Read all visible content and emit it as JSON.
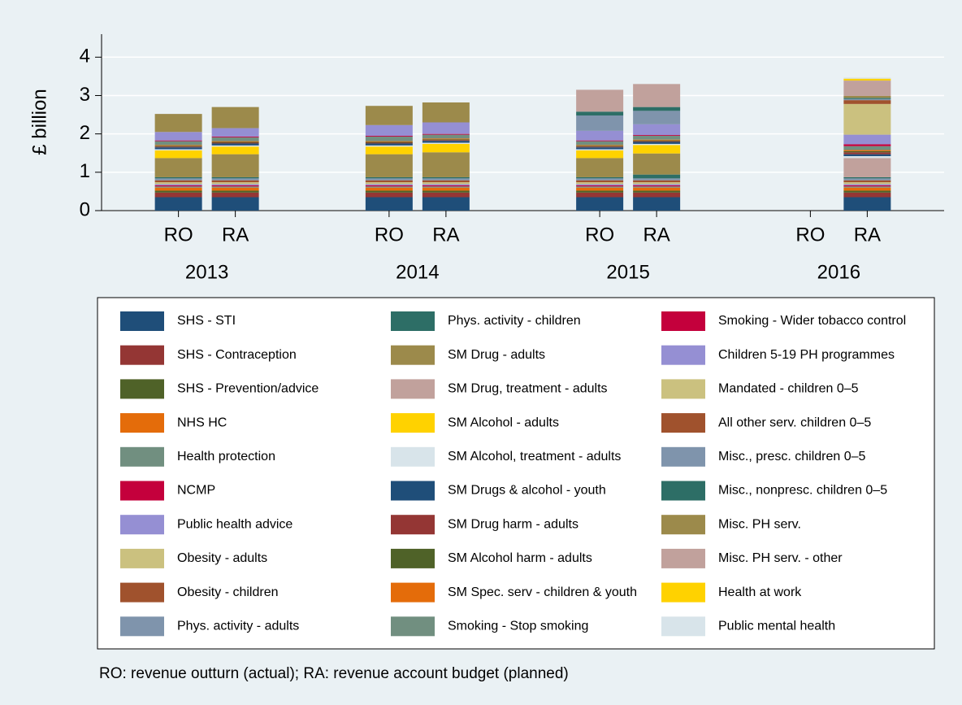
{
  "chart_data": {
    "type": "stacked_bar",
    "ylabel": "£ billion",
    "categories": [
      "RO",
      "RA",
      "RO",
      "RA",
      "RO",
      "RA",
      "RO",
      "RA"
    ],
    "groups": [
      "2013",
      "2014",
      "2015",
      "2016"
    ],
    "ylim": [
      0,
      4.6
    ],
    "yticks": [
      0,
      1,
      2,
      3,
      4
    ],
    "grid": true,
    "note": "RO: revenue outturn (actual); RA: revenue account budget (planned)",
    "series": [
      {
        "name": "SHS - STI",
        "color": "#1f4e79",
        "values": [
          0.35,
          0.35,
          0.35,
          0.35,
          0.35,
          0.35,
          null,
          0.35
        ]
      },
      {
        "name": "SHS - Contraception",
        "color": "#943634",
        "values": [
          0.12,
          0.12,
          0.12,
          0.12,
          0.12,
          0.12,
          null,
          0.12
        ]
      },
      {
        "name": "SHS - Prevention/advice",
        "color": "#4f6228",
        "values": [
          0.05,
          0.05,
          0.05,
          0.05,
          0.05,
          0.05,
          null,
          0.05
        ]
      },
      {
        "name": "NHS HC",
        "color": "#e46c0a",
        "values": [
          0.08,
          0.08,
          0.08,
          0.08,
          0.08,
          0.08,
          null,
          0.08
        ]
      },
      {
        "name": "Health protection",
        "color": "#718f80",
        "values": [
          0.03,
          0.03,
          0.03,
          0.03,
          0.03,
          0.03,
          null,
          0.03
        ]
      },
      {
        "name": "NCMP",
        "color": "#c4003c",
        "values": [
          0.03,
          0.03,
          0.03,
          0.03,
          0.03,
          0.03,
          null,
          0.03
        ]
      },
      {
        "name": "Public health advice",
        "color": "#958fd3",
        "values": [
          0.03,
          0.03,
          0.03,
          0.03,
          0.03,
          0.03,
          null,
          0.03
        ]
      },
      {
        "name": "Obesity - adults",
        "color": "#cbc17f",
        "values": [
          0.05,
          0.05,
          0.05,
          0.05,
          0.05,
          0.05,
          null,
          0.05
        ]
      },
      {
        "name": "Obesity - children",
        "color": "#a0522d",
        "values": [
          0.05,
          0.05,
          0.05,
          0.05,
          0.05,
          0.05,
          null,
          0.05
        ]
      },
      {
        "name": "Phys. activity - adults",
        "color": "#7f94ac",
        "values": [
          0.05,
          0.05,
          0.05,
          0.05,
          0.05,
          0.05,
          null,
          0.05
        ]
      },
      {
        "name": "Phys. activity - children",
        "color": "#2d6e66",
        "values": [
          0.03,
          0.03,
          0.03,
          0.03,
          0.03,
          0.1,
          null,
          0.03
        ]
      },
      {
        "name": "SM Drug - adults",
        "color": "#9c8a4b",
        "values": [
          0.5,
          0.6,
          0.6,
          0.65,
          0.5,
          0.55,
          null,
          0
        ]
      },
      {
        "name": "SM Drug, treatment - adults",
        "color": "#c1a19c",
        "values": [
          0,
          0,
          0,
          0,
          0,
          0,
          null,
          0.5
        ]
      },
      {
        "name": "SM Alcohol - adults",
        "color": "#ffd200",
        "values": [
          0.2,
          0.2,
          0.2,
          0.22,
          0.2,
          0.22,
          null,
          0
        ]
      },
      {
        "name": "SM Alcohol, treatment - adults",
        "color": "#d8e4ea",
        "values": [
          0.03,
          0.03,
          0.03,
          0.03,
          0.03,
          0.03,
          null,
          0.05
        ]
      },
      {
        "name": "SM Drugs & alcohol - youth",
        "color": "#1f4e79",
        "values": [
          0.05,
          0.05,
          0.05,
          0.05,
          0.05,
          0.05,
          null,
          0.05
        ]
      },
      {
        "name": "SM Drug harm - adults",
        "color": "#943634",
        "values": [
          0.02,
          0.02,
          0.02,
          0.02,
          0.02,
          0.02,
          null,
          0.05
        ]
      },
      {
        "name": "SM Alcohol harm - adults",
        "color": "#4f6228",
        "values": [
          0.02,
          0.02,
          0.02,
          0.02,
          0.02,
          0.02,
          null,
          0.03
        ]
      },
      {
        "name": "SM Spec. serv - children & youth",
        "color": "#e46c0a",
        "values": [
          0.02,
          0.02,
          0.02,
          0.02,
          0.02,
          0.02,
          null,
          0.03
        ]
      },
      {
        "name": "Smoking - Stop smoking",
        "color": "#718f80",
        "values": [
          0.1,
          0.1,
          0.12,
          0.1,
          0.1,
          0.1,
          null,
          0.1
        ]
      },
      {
        "name": "Smoking - Wider tobacco control",
        "color": "#c4003c",
        "values": [
          0.02,
          0.02,
          0.02,
          0.02,
          0.02,
          0.02,
          null,
          0.05
        ]
      },
      {
        "name": "Children 5-19 PH programmes",
        "color": "#958fd3",
        "values": [
          0.22,
          0.22,
          0.28,
          0.3,
          0.25,
          0.28,
          null,
          0.25
        ]
      },
      {
        "name": "Mandated - children 0–5",
        "color": "#cbc17f",
        "values": [
          0,
          0,
          0,
          0,
          0,
          0,
          null,
          0.8
        ]
      },
      {
        "name": "All other serv. children 0–5",
        "color": "#a0522d",
        "values": [
          0,
          0,
          0,
          0,
          0,
          0,
          null,
          0.1
        ]
      },
      {
        "name": "Misc., presc. children 0–5",
        "color": "#7f94ac",
        "values": [
          0,
          0,
          0,
          0,
          0.4,
          0.35,
          null,
          0.03
        ]
      },
      {
        "name": "Misc., nonpresc. children 0–5",
        "color": "#2d6e66",
        "values": [
          0,
          0,
          0,
          0,
          0.1,
          0.1,
          null,
          0.03
        ]
      },
      {
        "name": "Misc. PH serv.",
        "color": "#9c8a4b",
        "values": [
          0.47,
          0.55,
          0.5,
          0.52,
          0,
          0,
          null,
          0.05
        ]
      },
      {
        "name": "Misc. PH serv. - other",
        "color": "#c1a19c",
        "values": [
          0,
          0,
          0,
          0,
          0.57,
          0.6,
          null,
          0.4
        ]
      },
      {
        "name": "Health at work",
        "color": "#ffd200",
        "values": [
          0,
          0,
          0,
          0,
          0,
          0,
          null,
          0.05
        ]
      },
      {
        "name": "Public mental health",
        "color": "#d8e4ea",
        "values": [
          0,
          0,
          0,
          0,
          0,
          0,
          null,
          0.03
        ]
      }
    ]
  }
}
